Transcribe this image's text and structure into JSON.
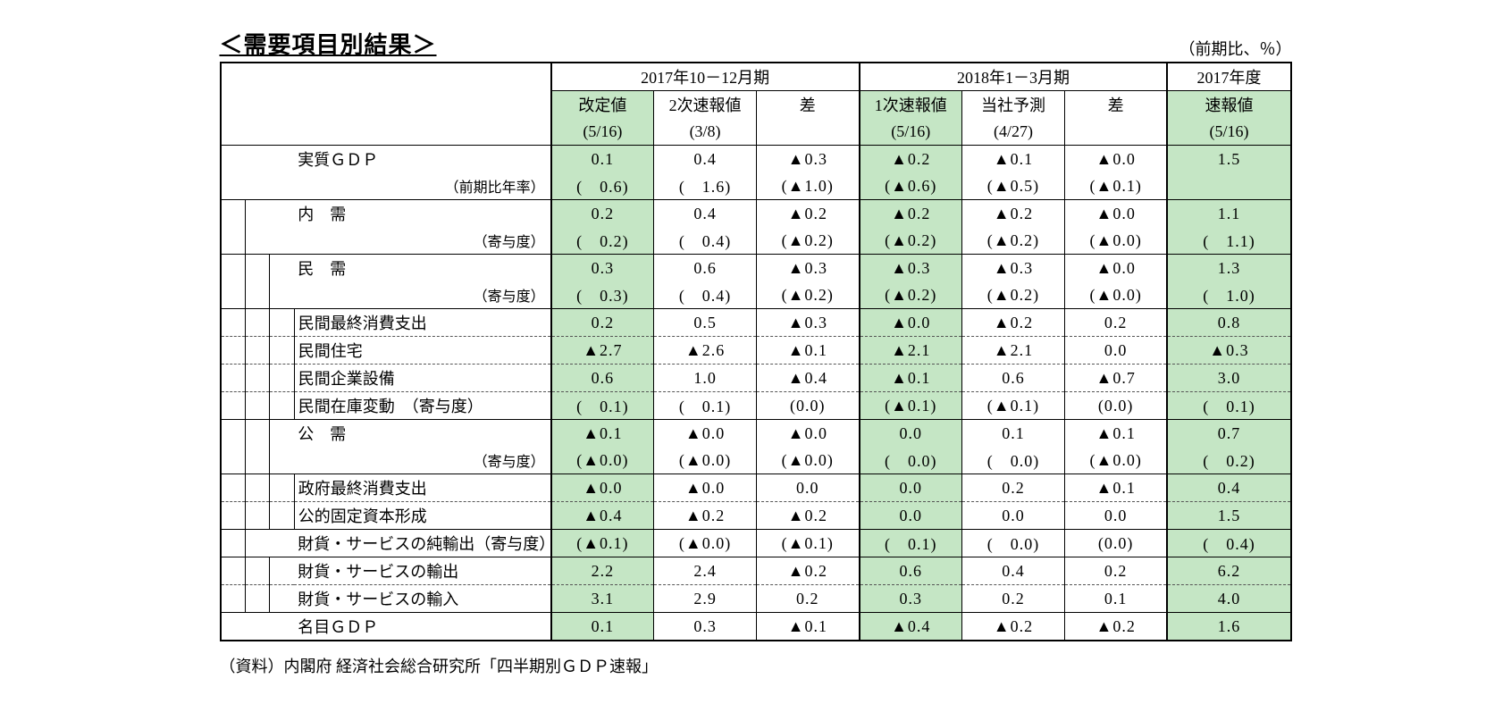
{
  "title": "＜需要項目別結果＞",
  "unit_note": "（前期比、％）",
  "footnote": "（資料）内閣府 経済社会総合研究所「四半期別ＧＤＰ速報」",
  "colors": {
    "highlight": "#c5e6c5",
    "border": "#000000",
    "text": "#000000",
    "bg": "#ffffff"
  },
  "periods": {
    "p1": {
      "label": "2017年10－12月期",
      "sub1": "改定値",
      "sub1_date": "(5/16)",
      "sub2": "2次速報値",
      "sub2_date": "(3/8)",
      "sub3": "差"
    },
    "p2": {
      "label": "2018年1－3月期",
      "sub1": "1次速報値",
      "sub1_date": "(5/16)",
      "sub2": "当社予測",
      "sub2_date": "(4/27)",
      "sub3": "差"
    },
    "fy": {
      "label": "2017年度",
      "sub": "速報値",
      "sub_date": "(5/16)"
    }
  },
  "rows": [
    {
      "indent": 0,
      "name": "実質ＧＤＰ",
      "note": "（前期比年率）",
      "v": [
        "0.1",
        "0.4",
        "▲0.3",
        "▲0.2",
        "▲0.1",
        "▲0.0",
        "1.5"
      ],
      "v2": [
        "(　0.6)",
        "(　1.6)",
        "(▲1.0)",
        "(▲0.6)",
        "(▲0.5)",
        "(▲0.1)",
        ""
      ],
      "dash": false
    },
    {
      "indent": 1,
      "name": "内　需",
      "note": "（寄与度）",
      "v": [
        "0.2",
        "0.4",
        "▲0.2",
        "▲0.2",
        "▲0.2",
        "▲0.0",
        "1.1"
      ],
      "v2": [
        "(　0.2)",
        "(　0.4)",
        "(▲0.2)",
        "(▲0.2)",
        "(▲0.2)",
        "(▲0.0)",
        "(　1.1)"
      ],
      "dash": false
    },
    {
      "indent": 2,
      "name": "民　需",
      "note": "（寄与度）",
      "v": [
        "0.3",
        "0.6",
        "▲0.3",
        "▲0.3",
        "▲0.3",
        "▲0.0",
        "1.3"
      ],
      "v2": [
        "(　0.3)",
        "(　0.4)",
        "(▲0.2)",
        "(▲0.2)",
        "(▲0.2)",
        "(▲0.0)",
        "(　1.0)"
      ],
      "dash": false
    },
    {
      "indent": 3,
      "name": "民間最終消費支出",
      "note": "",
      "v": [
        "0.2",
        "0.5",
        "▲0.3",
        "▲0.0",
        "▲0.2",
        "0.2",
        "0.8"
      ],
      "v2": null,
      "dash": true
    },
    {
      "indent": 3,
      "name": "民間住宅",
      "note": "",
      "v": [
        "▲2.7",
        "▲2.6",
        "▲0.1",
        "▲2.1",
        "▲2.1",
        "0.0",
        "▲0.3"
      ],
      "v2": null,
      "dash": true
    },
    {
      "indent": 3,
      "name": "民間企業設備",
      "note": "",
      "v": [
        "0.6",
        "1.0",
        "▲0.4",
        "▲0.1",
        "0.6",
        "▲0.7",
        "3.0"
      ],
      "v2": null,
      "dash": true
    },
    {
      "indent": 3,
      "name": "民間在庫変動　（寄与度）",
      "note": "",
      "v": [
        "(　0.1)",
        "(　0.1)",
        "(0.0)",
        "(▲0.1)",
        "(▲0.1)",
        "(0.0)",
        "(　0.1)"
      ],
      "v2": null,
      "dash": false
    },
    {
      "indent": 2,
      "name": "公　需",
      "note": "（寄与度）",
      "v": [
        "▲0.1",
        "▲0.0",
        "▲0.0",
        "0.0",
        "0.1",
        "▲0.1",
        "0.7"
      ],
      "v2": [
        "(▲0.0)",
        "(▲0.0)",
        "(▲0.0)",
        "(　0.0)",
        "(　0.0)",
        "(▲0.0)",
        "(　0.2)"
      ],
      "dash": false
    },
    {
      "indent": 3,
      "name": "政府最終消費支出",
      "note": "",
      "v": [
        "▲0.0",
        "▲0.0",
        "0.0",
        "0.0",
        "0.2",
        "▲0.1",
        "0.4"
      ],
      "v2": null,
      "dash": true
    },
    {
      "indent": 3,
      "name": "公的固定資本形成",
      "note": "",
      "v": [
        "▲0.4",
        "▲0.2",
        "▲0.2",
        "0.0",
        "0.0",
        "0.0",
        "1.5"
      ],
      "v2": null,
      "dash": false
    },
    {
      "indent": 1,
      "name": "財貨・サービスの純輸出（寄与度）",
      "note": "",
      "v": [
        "(▲0.1)",
        "(▲0.0)",
        "(▲0.1)",
        "(　0.1)",
        "(　0.0)",
        "(0.0)",
        "(　0.4)"
      ],
      "v2": null,
      "dash": false
    },
    {
      "indent": 2,
      "name": "財貨・サービスの輸出",
      "note": "",
      "v": [
        "2.2",
        "2.4",
        "▲0.2",
        "0.6",
        "0.4",
        "0.2",
        "6.2"
      ],
      "v2": null,
      "dash": true
    },
    {
      "indent": 2,
      "name": "財貨・サービスの輸入",
      "note": "",
      "v": [
        "3.1",
        "2.9",
        "0.2",
        "0.3",
        "0.2",
        "0.1",
        "4.0"
      ],
      "v2": null,
      "dash": false
    },
    {
      "indent": 0,
      "name": "名目ＧＤＰ",
      "note": "",
      "v": [
        "0.1",
        "0.3",
        "▲0.1",
        "▲0.4",
        "▲0.2",
        "▲0.2",
        "1.6"
      ],
      "v2": null,
      "dash": false,
      "final": true
    }
  ]
}
